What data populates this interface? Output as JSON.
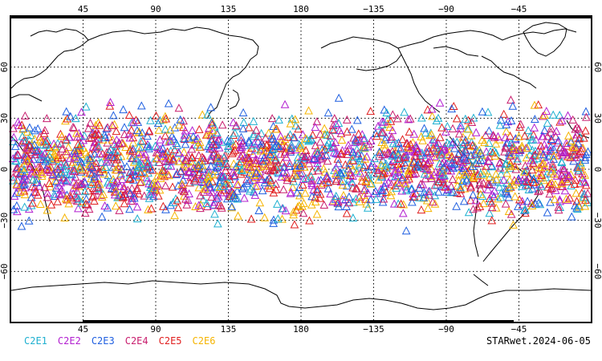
{
  "map": {
    "projection": "cylindrical",
    "lon_range": [
      0,
      360
    ],
    "lat_range": [
      -90,
      90
    ],
    "grid": "dotted",
    "lon_ticks": [
      "45",
      "90",
      "135",
      "180",
      "−135",
      "−90",
      "−45"
    ],
    "lat_ticks_left": [
      "60",
      "30",
      "0",
      "−30",
      "−60"
    ],
    "lat_ticks_right": [
      "60",
      "30",
      "0",
      "−30",
      "−60"
    ],
    "marker": "triangle-open",
    "observation_lat_range": [
      -40,
      45
    ]
  },
  "legend": [
    {
      "label": "C2E1",
      "color": "#1fb0d0"
    },
    {
      "label": "C2E2",
      "color": "#b21fd0"
    },
    {
      "label": "C2E3",
      "color": "#1f5fe0"
    },
    {
      "label": "C2E4",
      "color": "#c81e6e"
    },
    {
      "label": "C2E5",
      "color": "#e01e1e"
    },
    {
      "label": "C2E6",
      "color": "#f5b400"
    }
  ],
  "footer": {
    "label": "STARwet.2024-06-05"
  }
}
